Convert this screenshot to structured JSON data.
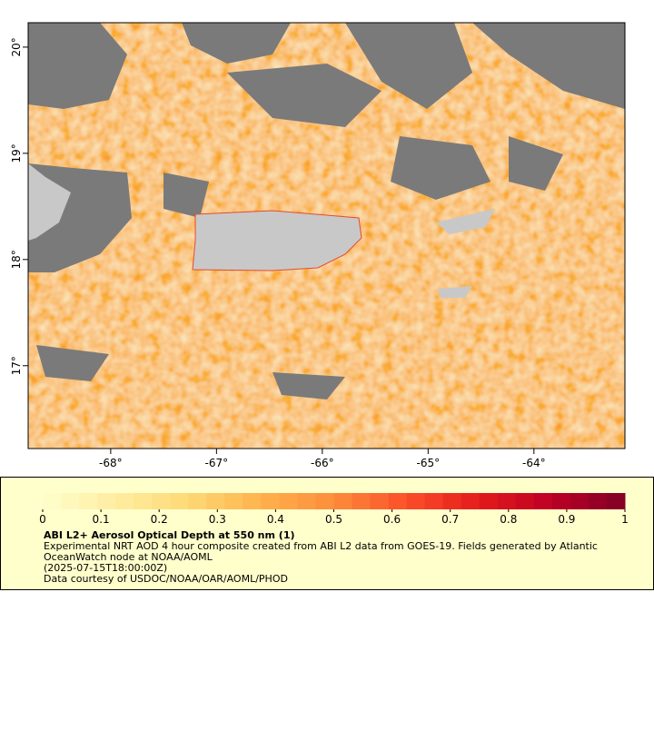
{
  "map": {
    "xlim": [
      -68.78,
      -63.14
    ],
    "ylim": [
      16.22,
      20.23
    ],
    "xticks": [
      {
        "value": -68,
        "label": "-68°"
      },
      {
        "value": -67,
        "label": "-67°"
      },
      {
        "value": -66,
        "label": "-66°"
      },
      {
        "value": -65,
        "label": "-65°"
      },
      {
        "value": -64,
        "label": "-64°"
      }
    ],
    "yticks": [
      {
        "value": 17,
        "label": "17°"
      },
      {
        "value": 18,
        "label": "18°"
      },
      {
        "value": 19,
        "label": "19°"
      },
      {
        "value": 20,
        "label": "20°"
      }
    ]
  },
  "colorbar": {
    "lim": [
      0,
      1
    ],
    "ticks": [
      0,
      0.1,
      0.2,
      0.3,
      0.4,
      0.5,
      0.6,
      0.7,
      0.8,
      0.9,
      1
    ],
    "colors": [
      "#ffffcc",
      "#ffeda0",
      "#fed976",
      "#feb24c",
      "#fd8d3c",
      "#fc4e2a",
      "#e31a1c",
      "#bd0026",
      "#800026"
    ]
  },
  "caption": {
    "title": "ABI L2+ Aerosol Optical Depth at 550 nm (1)",
    "lines": [
      "Experimental NRT AOD 4 hour composite created from ABI L2 data from GOES-19. Fields generated by Atlantic",
      "OceanWatch node at NOAA/AOML",
      "(2025-07-15T18:00:00Z)",
      "Data courtesy of USDOC/NOAA/OAR/AOML/PHOD"
    ]
  }
}
